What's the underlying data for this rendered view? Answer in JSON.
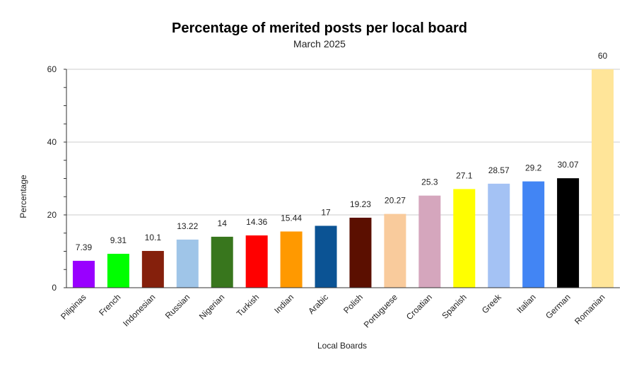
{
  "chart_data": {
    "type": "bar",
    "title": "Percentage of merited posts per local board",
    "subtitle": "March 2025",
    "xlabel": "Local Boards",
    "ylabel": "Percentage",
    "ylim": [
      0,
      60
    ],
    "yticks": [
      "0",
      "20",
      "40",
      "60"
    ],
    "grid": true,
    "categories": [
      "Pilipinas",
      "French",
      "Indonesian",
      "Russian",
      "Nigerian",
      "Turkish",
      "Indian",
      "Arabic",
      "Polish",
      "Portuguese",
      "Croatian",
      "Spanish",
      "Greek",
      "Italian",
      "German",
      "Romanian"
    ],
    "values": [
      7.39,
      9.31,
      10.1,
      13.22,
      14,
      14.36,
      15.44,
      17,
      19.23,
      20.27,
      25.3,
      27.1,
      28.57,
      29.2,
      30.07,
      60
    ],
    "value_labels": [
      "7.39",
      "9.31",
      "10.1",
      "13.22",
      "14",
      "14.36",
      "15.44",
      "17",
      "19.23",
      "20.27",
      "25.3",
      "27.1",
      "28.57",
      "29.2",
      "30.07",
      "60"
    ],
    "colors": [
      "#9900ff",
      "#00ff00",
      "#85200c",
      "#9fc5e8",
      "#38761d",
      "#ff0000",
      "#ff9900",
      "#0b5394",
      "#5b0f00",
      "#f9cb9c",
      "#d5a6bd",
      "#ffff00",
      "#a4c2f4",
      "#4285f4",
      "#000000",
      "#ffe599"
    ]
  }
}
